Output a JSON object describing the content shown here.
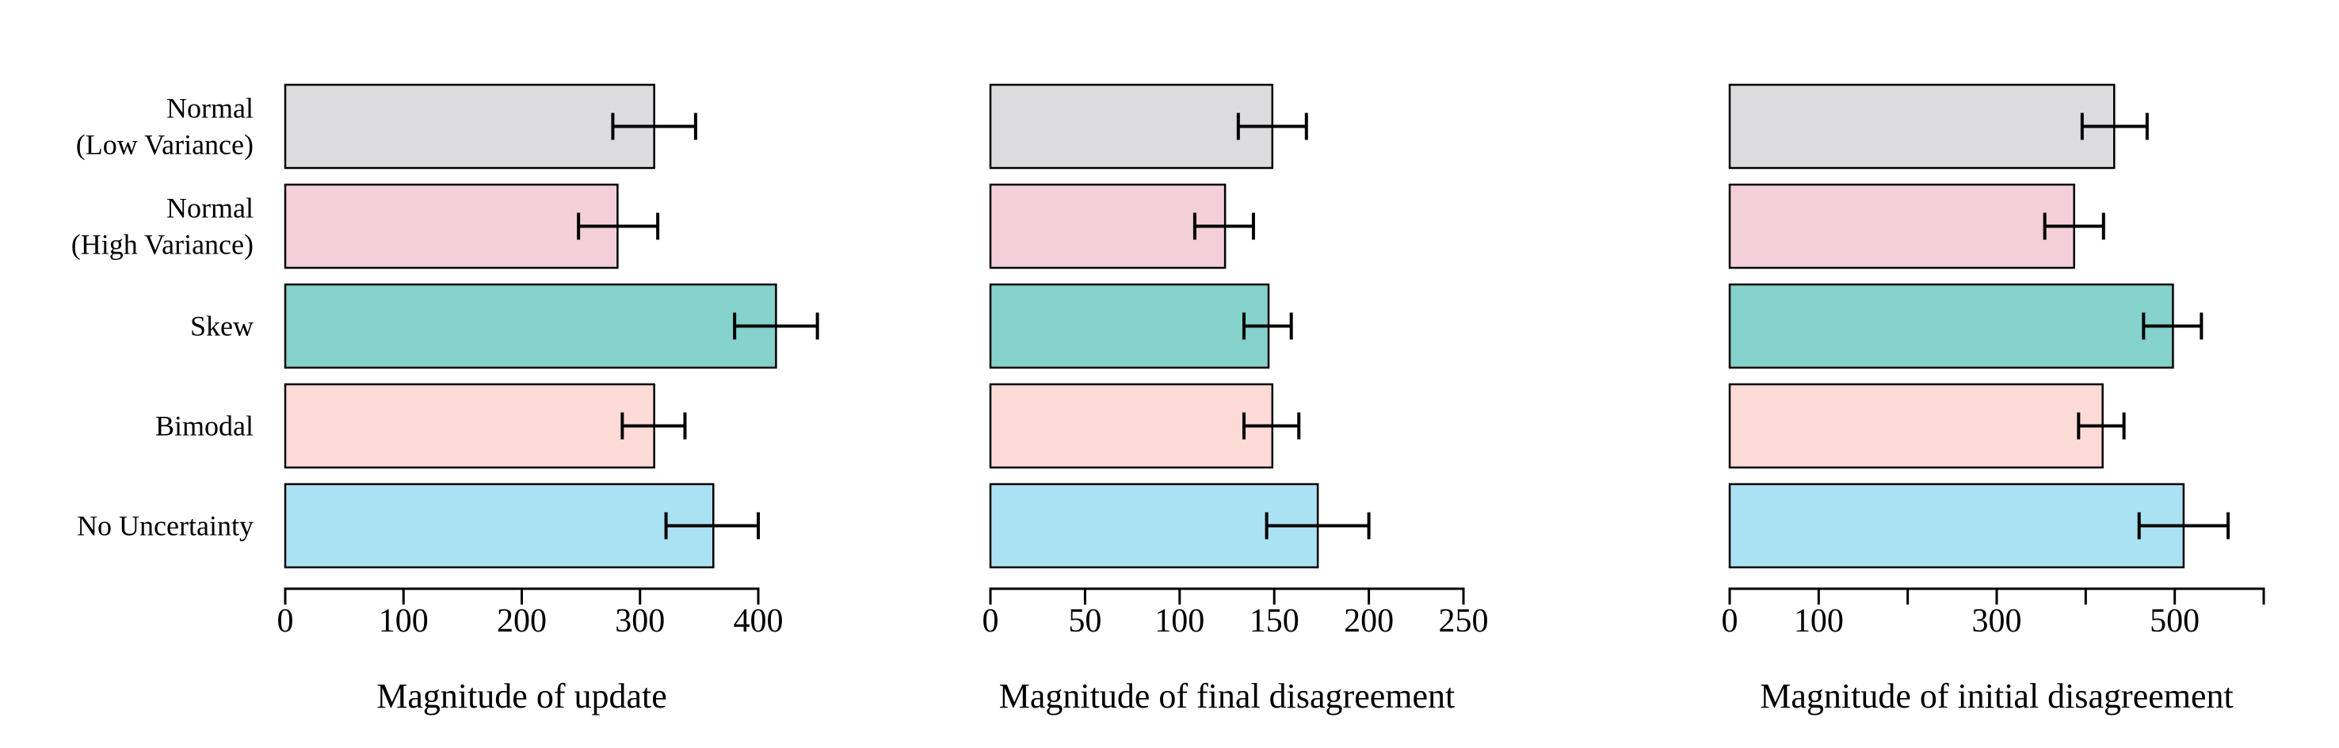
{
  "chart_data": {
    "type": "bar",
    "orientation": "horizontal",
    "categories": [
      [
        "Normal",
        "(Low Variance)"
      ],
      [
        "Normal",
        "(High Variance)"
      ],
      [
        "Skew"
      ],
      [
        "Bimodal"
      ],
      [
        "No Uncertainty"
      ]
    ],
    "colors": [
      "#dcdcdf",
      "#f3cfd9",
      "#85d1cb",
      "#fcdbd6",
      "#abe2f3"
    ],
    "panels": [
      {
        "xlabel": "Magnitude of update",
        "xlim": [
          0,
          400
        ],
        "ticks": [
          0,
          100,
          200,
          300,
          400
        ],
        "tick_labels": [
          "0",
          "100",
          "200",
          "300",
          "400"
        ],
        "values": [
          312,
          281,
          415,
          312,
          362
        ],
        "error_low": [
          277,
          248,
          380,
          285,
          322
        ],
        "error_high": [
          347,
          315,
          450,
          338,
          400
        ]
      },
      {
        "xlabel": "Magnitude of final disagreement",
        "xlim": [
          0,
          250
        ],
        "ticks": [
          0,
          50,
          100,
          150,
          200,
          250
        ],
        "tick_labels": [
          "0",
          "50",
          "100",
          "150",
          "200",
          "250"
        ],
        "values": [
          149,
          124,
          147,
          149,
          173
        ],
        "error_low": [
          131,
          108,
          134,
          134,
          146
        ],
        "error_high": [
          167,
          139,
          159,
          163,
          200
        ]
      },
      {
        "xlabel": "Magnitude of initial disagreement",
        "xlim": [
          0,
          600
        ],
        "ticks": [
          0,
          100,
          200,
          300,
          400,
          500,
          600
        ],
        "tick_labels": [
          "0",
          "100",
          "",
          "300",
          "",
          "500",
          ""
        ],
        "values": [
          432,
          387,
          498,
          419,
          510
        ],
        "error_low": [
          396,
          354,
          465,
          392,
          460
        ],
        "error_high": [
          469,
          420,
          530,
          443,
          560
        ]
      }
    ]
  }
}
